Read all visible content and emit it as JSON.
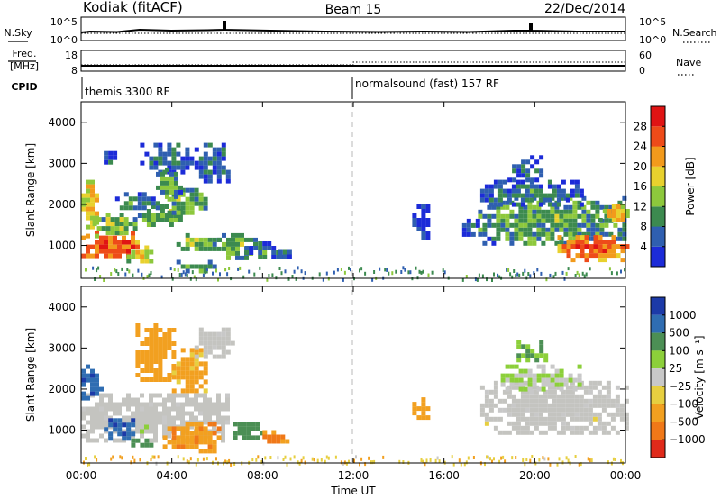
{
  "header": {
    "station": "Kodiak (fitACF)",
    "beam": "Beam 15",
    "date": "22/Dec/2014"
  },
  "colors": {
    "power_scale": [
      "#1c2bd8",
      "#2f5fb0",
      "#3c8a4f",
      "#8dc83c",
      "#e8d12e",
      "#f29a1c",
      "#ee4b19",
      "#e01414"
    ],
    "velocity_scale": [
      "#1c3aa8",
      "#2f6db2",
      "#4c8f55",
      "#8ccf3a",
      "#c8c8c8",
      "#e7cf40",
      "#f2a020",
      "#f07818",
      "#e02a1a"
    ],
    "ground_scatter": "#c4c4c0"
  },
  "status_panels": {
    "nsky_label": "N.Sky",
    "nsky_ticks": [
      "10^5",
      "10^0"
    ],
    "nsearch_label": "N.Search",
    "nsearch_ticks": [
      "10^5",
      "10^0"
    ],
    "freq_label": "Freq.",
    "freq_unit": "[MHz]",
    "freq_ticks": [
      "18",
      "8"
    ],
    "nave_label": "Nave",
    "nave_ticks": [
      "60",
      "0"
    ],
    "cpid_label": "CPID",
    "cpid_segments": [
      {
        "label": "themis 3300 RF",
        "start_hour": 0
      },
      {
        "label": "normalsound (fast) 157 RF",
        "start_hour": 12
      }
    ]
  },
  "chart_data": [
    {
      "type": "heatmap",
      "name": "power",
      "xlabel": "Time UT",
      "ylabel": "Slant Range [km]",
      "xlim": [
        0,
        24
      ],
      "ylim": [
        200,
        4500
      ],
      "x_ticks": [
        0,
        4,
        8,
        12,
        16,
        20,
        24
      ],
      "x_tick_labels": [
        "00:00",
        "04:00",
        "08:00",
        "12:00",
        "16:00",
        "20:00",
        "00:00"
      ],
      "y_ticks": [
        1000,
        2000,
        3000,
        4000
      ],
      "y_tick_labels": [
        "1000",
        "2000",
        "3000",
        "4000"
      ],
      "colorbar": {
        "label": "Power [dB]",
        "ticks": [
          4,
          8,
          12,
          16,
          20,
          24,
          28
        ],
        "tick_labels": [
          "4",
          "8",
          "12",
          "16",
          "20",
          "24",
          "28"
        ],
        "range": [
          0,
          32
        ]
      },
      "blobs": [
        {
          "t0": 0.0,
          "t1": 2.6,
          "r0": 700,
          "r1": 1350,
          "v": 27
        },
        {
          "t0": 0.0,
          "t1": 0.6,
          "r0": 1200,
          "r1": 2600,
          "v": 20
        },
        {
          "t0": 0.5,
          "t1": 2.5,
          "r0": 1300,
          "r1": 1800,
          "v": 14
        },
        {
          "t0": 2.0,
          "t1": 3.2,
          "r0": 650,
          "r1": 1000,
          "v": 18
        },
        {
          "t0": 2.5,
          "t1": 4.4,
          "r0": 1500,
          "r1": 2000,
          "v": 14
        },
        {
          "t0": 3.6,
          "t1": 5.4,
          "r0": 1800,
          "r1": 2400,
          "v": 13
        },
        {
          "t0": 1.5,
          "t1": 3.5,
          "r0": 1900,
          "r1": 2300,
          "v": 9
        },
        {
          "t0": 2.6,
          "t1": 4.8,
          "r0": 2800,
          "r1": 3500,
          "v": 8
        },
        {
          "t0": 3.3,
          "t1": 4.3,
          "r0": 2200,
          "r1": 2900,
          "v": 12
        },
        {
          "t0": 5.0,
          "t1": 6.5,
          "r0": 2600,
          "r1": 3500,
          "v": 8
        },
        {
          "t0": 4.2,
          "t1": 6.0,
          "r0": 900,
          "r1": 1300,
          "v": 14
        },
        {
          "t0": 4.0,
          "t1": 5.8,
          "r0": 400,
          "r1": 650,
          "v": 12
        },
        {
          "t0": 6.0,
          "t1": 7.6,
          "r0": 750,
          "r1": 1300,
          "v": 13
        },
        {
          "t0": 7.2,
          "t1": 8.8,
          "r0": 700,
          "r1": 1100,
          "v": 9
        },
        {
          "t0": 8.5,
          "t1": 9.1,
          "r0": 700,
          "r1": 1000,
          "v": 8
        },
        {
          "t0": 0.8,
          "t1": 1.6,
          "r0": 3000,
          "r1": 3300,
          "v": 7
        },
        {
          "t0": 14.6,
          "t1": 15.2,
          "r0": 1100,
          "r1": 2000,
          "v": 6
        },
        {
          "t0": 16.6,
          "t1": 17.5,
          "r0": 1300,
          "r1": 1650,
          "v": 6
        },
        {
          "t0": 17.5,
          "t1": 24.0,
          "r0": 1100,
          "r1": 2200,
          "v": 12
        },
        {
          "t0": 21.0,
          "t1": 24.0,
          "r0": 700,
          "r1": 1250,
          "v": 26
        },
        {
          "t0": 17.4,
          "t1": 22.0,
          "r0": 2000,
          "r1": 2600,
          "v": 8
        },
        {
          "t0": 18.8,
          "t1": 20.2,
          "r0": 2600,
          "r1": 3200,
          "v": 6
        },
        {
          "t0": 22.8,
          "t1": 24.0,
          "r0": 1600,
          "r1": 2000,
          "v": 20
        }
      ],
      "noise_band": {
        "t0": 0,
        "t1": 24,
        "r0": 200,
        "r1": 500,
        "v": 5
      }
    },
    {
      "type": "heatmap",
      "name": "velocity",
      "xlabel": "Time UT",
      "ylabel": "Slant Range [km]",
      "xlim": [
        0,
        24
      ],
      "ylim": [
        200,
        4500
      ],
      "x_ticks": [
        0,
        4,
        8,
        12,
        16,
        20,
        24
      ],
      "x_tick_labels": [
        "00:00",
        "04:00",
        "08:00",
        "12:00",
        "16:00",
        "20:00",
        "00:00"
      ],
      "y_ticks": [
        1000,
        2000,
        3000,
        4000
      ],
      "y_tick_labels": [
        "1000",
        "2000",
        "3000",
        "4000"
      ],
      "colorbar": {
        "label": "Velocity [m s⁻¹]",
        "ticks": [
          1000,
          500,
          100,
          25,
          -25,
          -100,
          -500,
          -1000
        ],
        "tick_labels": [
          "1000",
          "500",
          "100",
          "25",
          "−25",
          "−100",
          "−500",
          "−1000"
        ]
      },
      "blobs": [
        {
          "t0": 0.0,
          "t1": 6.5,
          "r0": 800,
          "r1": 1900,
          "v": 0,
          "g": 1
        },
        {
          "t0": 0.0,
          "t1": 0.8,
          "r0": 1800,
          "r1": 2600,
          "v": 800
        },
        {
          "t0": 1.0,
          "t1": 2.2,
          "r0": 800,
          "r1": 1400,
          "v": 900
        },
        {
          "t0": 2.4,
          "t1": 4.0,
          "r0": 2200,
          "r1": 3600,
          "v": -300
        },
        {
          "t0": 4.0,
          "t1": 5.4,
          "r0": 2000,
          "r1": 3000,
          "v": -150
        },
        {
          "t0": 5.0,
          "t1": 6.6,
          "r0": 2800,
          "r1": 3500,
          "v": 0,
          "g": 1
        },
        {
          "t0": 3.6,
          "t1": 6.0,
          "r0": 450,
          "r1": 1200,
          "v": -400
        },
        {
          "t0": 6.5,
          "t1": 8.0,
          "r0": 800,
          "r1": 1200,
          "v": 200
        },
        {
          "t0": 7.8,
          "t1": 9.0,
          "r0": 700,
          "r1": 1000,
          "v": -600
        },
        {
          "t0": 2.2,
          "t1": 3.0,
          "r0": 600,
          "r1": 800,
          "v": 150
        },
        {
          "t0": 17.6,
          "t1": 24.0,
          "r0": 900,
          "r1": 2200,
          "v": 0,
          "g": 1
        },
        {
          "t0": 18.5,
          "t1": 22.0,
          "r0": 2000,
          "r1": 2600,
          "v": 20
        },
        {
          "t0": 19.0,
          "t1": 20.4,
          "r0": 2700,
          "r1": 3200,
          "v": 120
        },
        {
          "t0": 14.6,
          "t1": 15.2,
          "r0": 1300,
          "r1": 1800,
          "v": -300
        }
      ],
      "noise_band": {
        "t0": 0,
        "t1": 24,
        "r0": 200,
        "r1": 400,
        "v": -80
      }
    }
  ]
}
